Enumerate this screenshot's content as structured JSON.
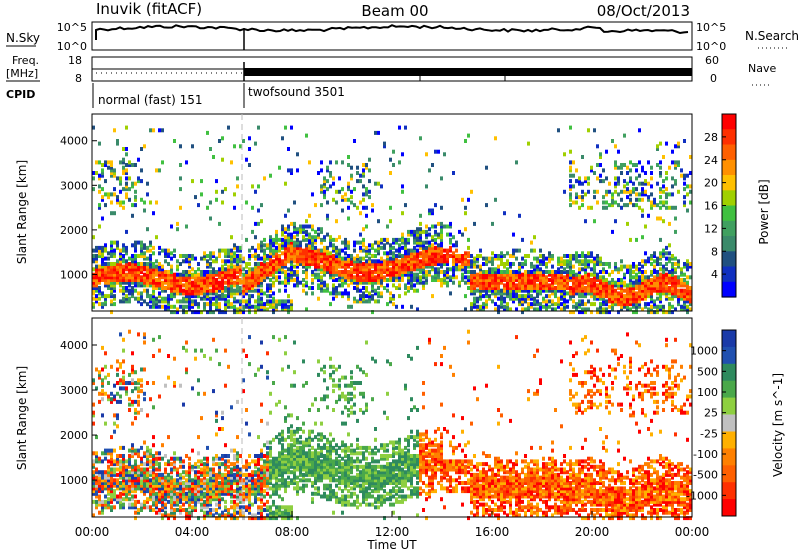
{
  "header": {
    "station": "Inuvik (fitACF)",
    "beam": "Beam 00",
    "date": "08/Oct/2013"
  },
  "noise_panel": {
    "left_label": "N.Sky",
    "right_label": "N.Search",
    "left_ticks": [
      "10^5",
      "10^0"
    ],
    "right_ticks": [
      "10^5",
      "10^0"
    ]
  },
  "freq_panel": {
    "left_label": "Freq.",
    "left_unit": "[MHz]",
    "right_label": "Nave",
    "left_ticks": [
      "18",
      "8"
    ],
    "right_ticks": [
      "60",
      "0"
    ]
  },
  "cpid_panel": {
    "label": "CPID",
    "modes": [
      {
        "name": "normal (fast) 151",
        "start_hour": 0,
        "end_hour": 6
      },
      {
        "name": "twofsound 3501",
        "start_hour": 6,
        "end_hour": 24
      }
    ]
  },
  "chart_data": [
    {
      "type": "heatmap",
      "ylabel": "Slant Range [km]",
      "y_ticks": [
        "4000",
        "3000",
        "2000",
        "1000"
      ],
      "colorbar": {
        "label": "Power [dB]",
        "ticks": [
          "28",
          "24",
          "20",
          "16",
          "12",
          "8",
          "4"
        ],
        "colors": [
          "#ff0000",
          "#ff3000",
          "#ff6000",
          "#ff9000",
          "#ffc000",
          "#a0d000",
          "#40c040",
          "#40a060",
          "#3a8a6a",
          "#205080",
          "#1030c0",
          "#0000ff"
        ]
      }
    },
    {
      "type": "heatmap",
      "ylabel": "Slant Range [km]",
      "y_ticks": [
        "4000",
        "3000",
        "2000",
        "1000"
      ],
      "x_ticks": [
        "00:00",
        "04:00",
        "08:00",
        "12:00",
        "16:00",
        "20:00",
        "00:00"
      ],
      "xlabel": "Time UT",
      "colorbar": {
        "label": "Velocity [m s^-1]",
        "ticks": [
          "1000",
          "500",
          "100",
          "25",
          "-25",
          "-100",
          "-500",
          "-1000"
        ],
        "colors": [
          "#1a3aa8",
          "#2050b0",
          "#2e8a5e",
          "#4aa84a",
          "#8ecf40",
          "#c0c0c0",
          "#ffb000",
          "#ff8000",
          "#ff6000",
          "#ff3000",
          "#ff0000"
        ]
      }
    }
  ]
}
